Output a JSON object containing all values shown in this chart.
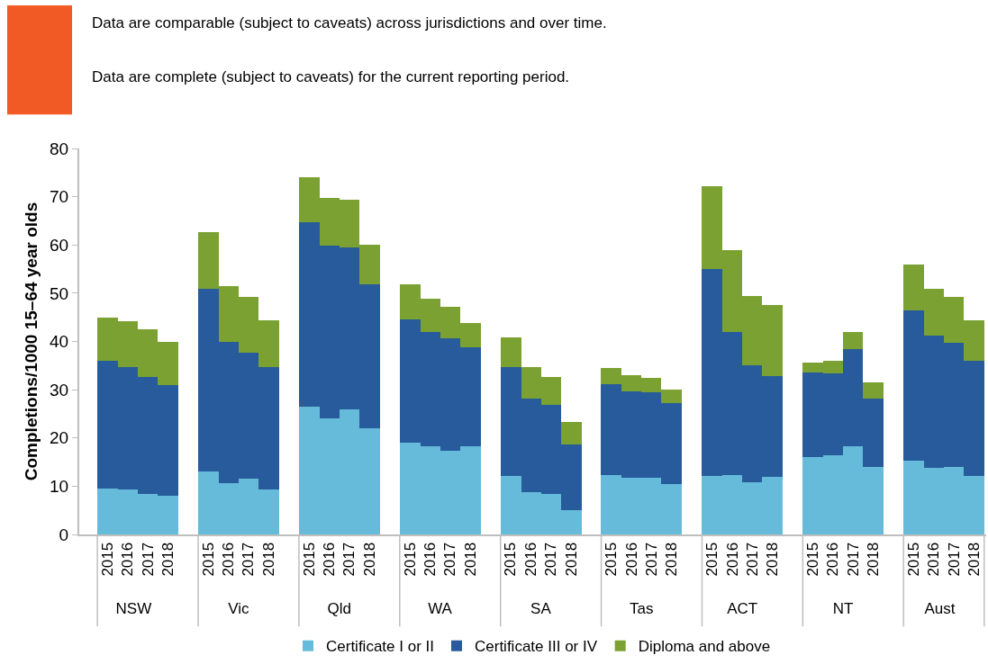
{
  "chart_data": [
    {
      "type": "bar",
      "stacked": true,
      "xlabel": "NSW",
      "categories": [
        "2015",
        "2016",
        "2017",
        "2018"
      ],
      "series": [
        {
          "name": "Certificate I or II",
          "color": "#65bbd9",
          "values": [
            9.6,
            9.4,
            8.3,
            8.1
          ]
        },
        {
          "name": "Certificate III or IV",
          "color": "#275b9b",
          "values": [
            26.3,
            25.2,
            24.3,
            22.9
          ]
        },
        {
          "name": "Diploma and above",
          "color": "#7aa131",
          "values": [
            9.0,
            9.6,
            10.0,
            9.0
          ]
        }
      ],
      "ylabel": "Completions/1000 15–64 year olds",
      "ylim": [
        0,
        80
      ],
      "yticks": [
        0,
        10,
        20,
        30,
        40,
        50,
        60,
        70,
        80
      ],
      "legend": "bottom",
      "annotations": [
        "Data are comparable (subject to caveats) across jurisdictions and over time.",
        "Data are complete (subject to caveats) for the current reporting period."
      ]
    },
    {
      "type": "bar",
      "stacked": true,
      "xlabel": "Vic",
      "categories": [
        "2015",
        "2016",
        "2017",
        "2018"
      ],
      "ylim": [
        0,
        80
      ],
      "tick_labels": "x",
      "series": [
        {
          "color": "#65bbd9",
          "values": [
            13.0,
            10.7,
            11.5,
            9.3
          ]
        },
        {
          "color": "#275b9b",
          "values": [
            38.0,
            29.2,
            26.2,
            25.4
          ]
        },
        {
          "color": "#7aa131",
          "values": [
            11.7,
            11.5,
            11.6,
            9.7
          ]
        }
      ]
    },
    {
      "type": "bar",
      "stacked": true,
      "xlabel": "Qld",
      "categories": [
        "2015",
        "2016",
        "2017",
        "2018"
      ],
      "ylim": [
        0,
        80
      ],
      "tick_labels": "x",
      "series": [
        {
          "color": "#65bbd9",
          "values": [
            26.5,
            24.1,
            26.0,
            22.0
          ]
        },
        {
          "color": "#275b9b",
          "values": [
            38.3,
            35.8,
            33.5,
            29.8
          ]
        },
        {
          "color": "#7aa131",
          "values": [
            9.3,
            9.9,
            9.8,
            8.3
          ]
        }
      ]
    },
    {
      "type": "bar",
      "stacked": true,
      "xlabel": "WA",
      "categories": [
        "2015",
        "2016",
        "2017",
        "2018"
      ],
      "ylim": [
        0,
        80
      ],
      "tick_labels": "x",
      "series": [
        {
          "color": "#65bbd9",
          "values": [
            19.0,
            18.3,
            17.3,
            18.3
          ]
        },
        {
          "color": "#275b9b",
          "values": [
            25.6,
            23.7,
            23.3,
            20.5
          ]
        },
        {
          "color": "#7aa131",
          "values": [
            7.2,
            6.8,
            6.5,
            5.1
          ]
        }
      ]
    },
    {
      "type": "bar",
      "stacked": true,
      "xlabel": "SA",
      "categories": [
        "2015",
        "2016",
        "2017",
        "2018"
      ],
      "ylim": [
        0,
        80
      ],
      "tick_labels": "x",
      "series": [
        {
          "color": "#65bbd9",
          "values": [
            12.2,
            8.8,
            8.3,
            5.1
          ]
        },
        {
          "color": "#275b9b",
          "values": [
            22.5,
            19.4,
            18.6,
            13.6
          ]
        },
        {
          "color": "#7aa131",
          "values": [
            6.2,
            6.5,
            5.7,
            4.6
          ]
        }
      ]
    },
    {
      "type": "bar",
      "stacked": true,
      "xlabel": "Tas",
      "categories": [
        "2015",
        "2016",
        "2017",
        "2018"
      ],
      "ylim": [
        0,
        80
      ],
      "tick_labels": "x",
      "series": [
        {
          "color": "#65bbd9",
          "values": [
            12.3,
            11.7,
            11.8,
            10.5
          ]
        },
        {
          "color": "#275b9b",
          "values": [
            18.9,
            18.0,
            17.6,
            16.7
          ]
        },
        {
          "color": "#7aa131",
          "values": [
            3.3,
            3.4,
            3.1,
            2.8
          ]
        }
      ]
    },
    {
      "type": "bar",
      "stacked": true,
      "xlabel": "ACT",
      "categories": [
        "2015",
        "2016",
        "2017",
        "2018"
      ],
      "ylim": [
        0,
        80
      ],
      "tick_labels": "x",
      "series": [
        {
          "color": "#65bbd9",
          "values": [
            12.2,
            12.3,
            10.8,
            12.0
          ]
        },
        {
          "color": "#275b9b",
          "values": [
            42.8,
            29.7,
            24.3,
            20.9
          ]
        },
        {
          "color": "#7aa131",
          "values": [
            17.2,
            17.0,
            14.3,
            14.6
          ]
        }
      ]
    },
    {
      "type": "bar",
      "stacked": true,
      "xlabel": "NT",
      "categories": [
        "2015",
        "2016",
        "2017",
        "2018"
      ],
      "ylim": [
        0,
        80
      ],
      "tick_labels": "x",
      "series": [
        {
          "color": "#65bbd9",
          "values": [
            16.0,
            16.4,
            18.3,
            14.0
          ]
        },
        {
          "color": "#275b9b",
          "values": [
            17.5,
            17.0,
            20.1,
            14.2
          ]
        },
        {
          "color": "#7aa131",
          "values": [
            2.1,
            2.5,
            3.5,
            3.3
          ]
        }
      ]
    },
    {
      "type": "bar",
      "stacked": true,
      "xlabel": "Aust",
      "categories": [
        "2015",
        "2016",
        "2017",
        "2018"
      ],
      "ylim": [
        0,
        80
      ],
      "tick_labels": "x",
      "series": [
        {
          "color": "#65bbd9",
          "values": [
            15.2,
            13.8,
            13.9,
            12.2
          ]
        },
        {
          "color": "#275b9b",
          "values": [
            31.3,
            27.5,
            25.8,
            23.7
          ]
        },
        {
          "color": "#7aa131",
          "values": [
            9.4,
            9.7,
            9.6,
            8.4
          ]
        }
      ]
    }
  ]
}
